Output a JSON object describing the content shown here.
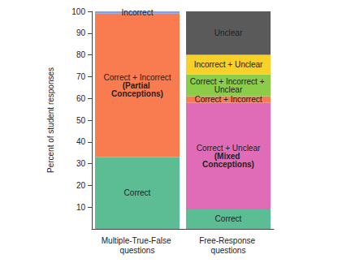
{
  "chart_data": {
    "type": "bar",
    "stacked": true,
    "y_label": "Percent of student responses",
    "categories": [
      "Multiple-True-False questions",
      "Free-Response questions"
    ],
    "ylim": [
      0,
      100
    ],
    "yticks": [
      10,
      20,
      30,
      40,
      50,
      60,
      70,
      80,
      90,
      100
    ],
    "grid": false,
    "series": [
      {
        "name": "Correct",
        "color": "#5cbd95",
        "values": [
          33,
          9
        ]
      },
      {
        "name": "Correct + Unclear",
        "color": "#e06bb7",
        "values": [
          0,
          49
        ]
      },
      {
        "name": "Correct + Incorrect",
        "color": "#f87c4f",
        "values": [
          66,
          3
        ]
      },
      {
        "name": "Correct + Incorrect + Unclear",
        "color": "#8bcc48",
        "values": [
          0,
          10
        ]
      },
      {
        "name": "Incorrect + Unclear",
        "color": "#f7d02a",
        "values": [
          0,
          9
        ]
      },
      {
        "name": "Incorrect",
        "color": "#8a9fd8",
        "values": [
          1,
          0
        ]
      },
      {
        "name": "Unclear",
        "color": "#5a5a5a",
        "values": [
          0,
          20
        ]
      }
    ],
    "annotations": [
      {
        "series": "Correct + Incorrect",
        "category": "Multiple-True-False questions",
        "text": "(Partial Conceptions)"
      },
      {
        "series": "Correct + Unclear",
        "category": "Free-Response questions",
        "text": "(Mixed Conceptions)"
      }
    ]
  }
}
